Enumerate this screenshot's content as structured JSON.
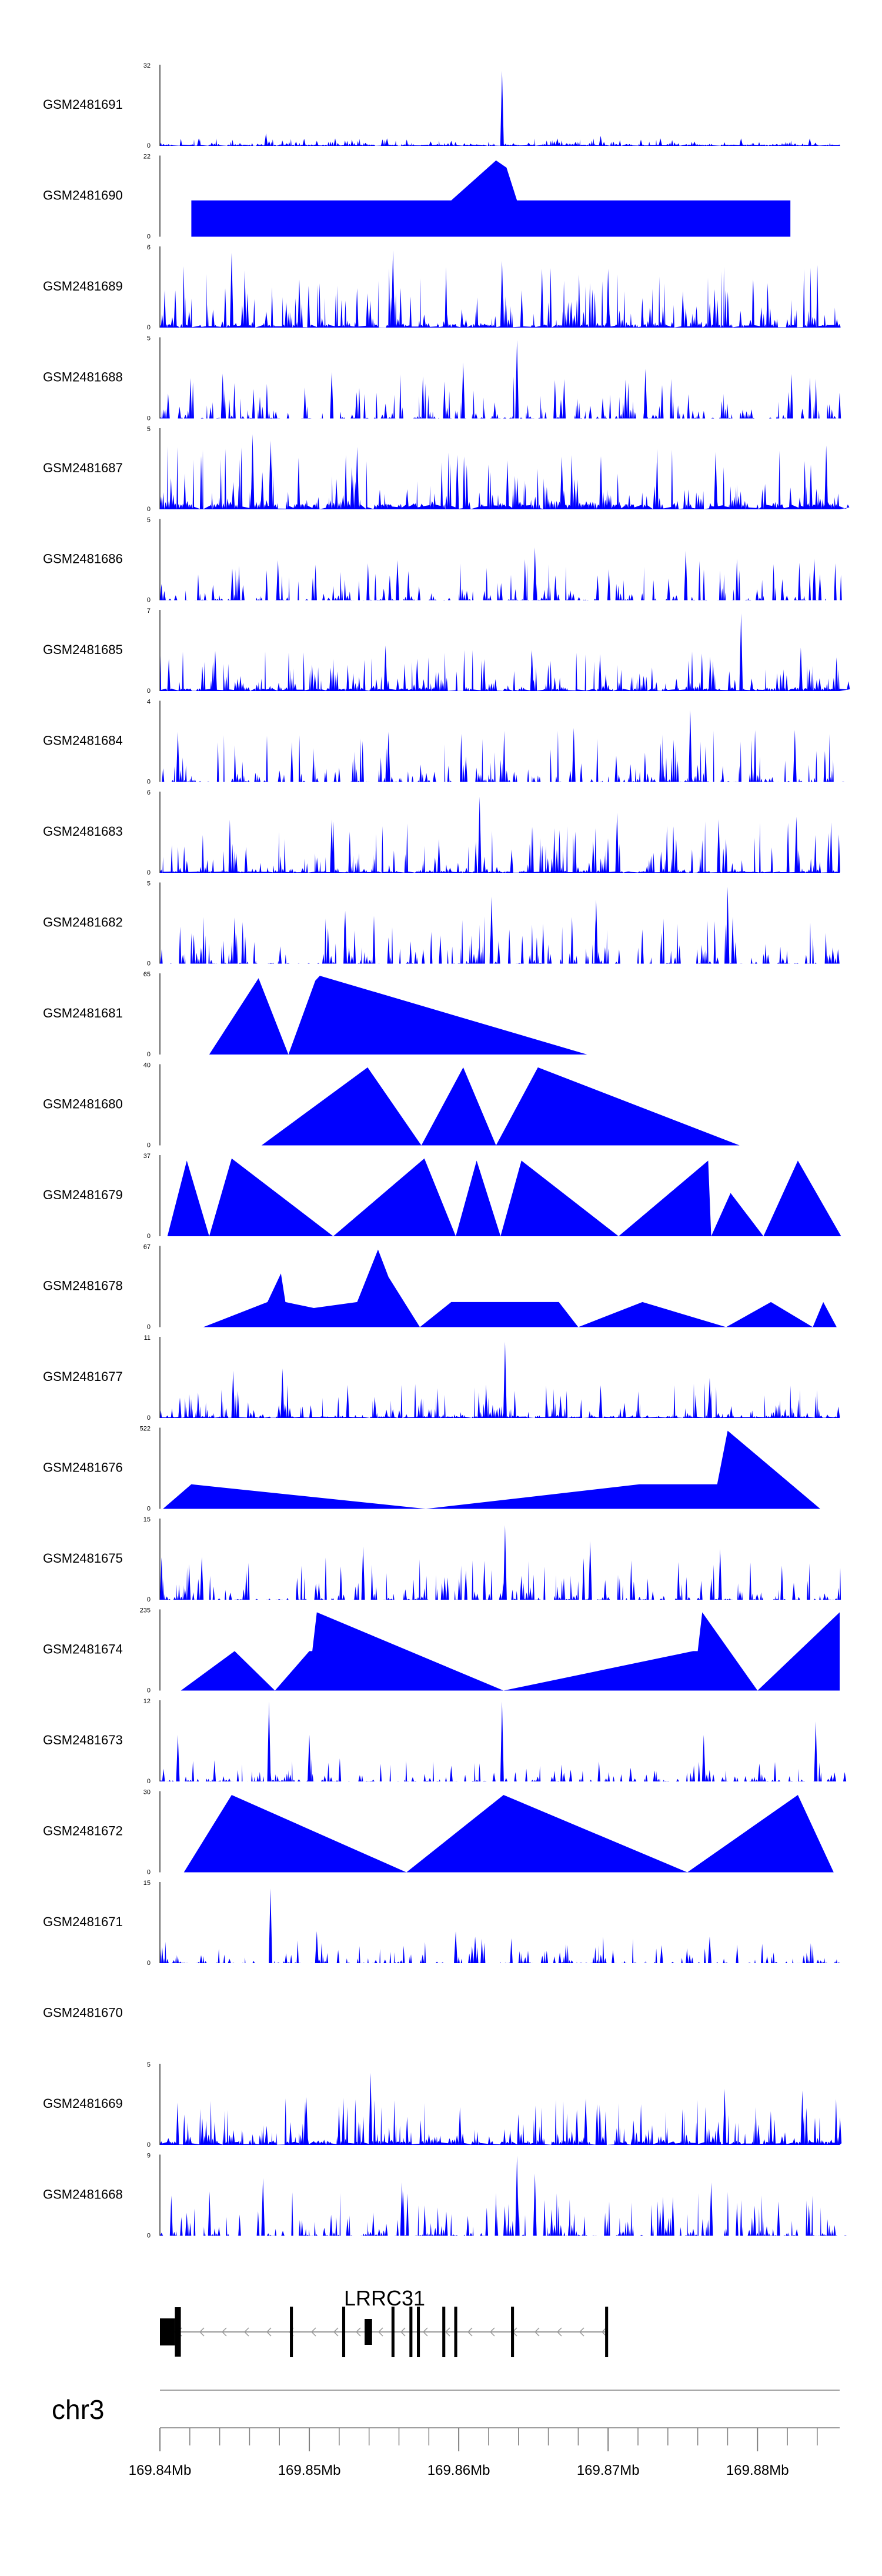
{
  "chart_data": {
    "type": "area",
    "title": "",
    "track_color": "#0000FF",
    "gene_color": "#000000",
    "axis_color": "#808080",
    "x_range_mb": [
      169.84,
      169.8855
    ],
    "tracks": [
      {
        "label": "GSM2481691",
        "ymax": "32",
        "ymin": "0",
        "ymax_value": 32,
        "peaks": [
          [
            169.8426,
            3
          ],
          [
            169.8471,
            5
          ],
          [
            169.8505,
            2
          ],
          [
            169.8552,
            3
          ],
          [
            169.8595,
            2
          ],
          [
            169.8629,
            30
          ],
          [
            169.8666,
            3
          ],
          [
            169.8695,
            4
          ],
          [
            169.8735,
            3
          ],
          [
            169.8789,
            3
          ],
          [
            169.8835,
            3
          ]
        ],
        "baseline": [
          0.4,
          3
        ]
      },
      {
        "label": "GSM2481690",
        "ymax": "22",
        "ymin": "0",
        "ymax_value": 22,
        "peaks": [
          [
            169.8421,
            10
          ],
          [
            169.8444,
            10
          ],
          [
            169.8474,
            10
          ],
          [
            169.8504,
            10
          ],
          [
            169.8517,
            10
          ],
          [
            169.8546,
            10
          ],
          [
            169.8558,
            10
          ],
          [
            169.8582,
            10
          ],
          [
            169.8595,
            10
          ],
          [
            169.8625,
            21
          ],
          [
            169.8632,
            19
          ],
          [
            169.8639,
            10
          ],
          [
            169.8662,
            10
          ],
          [
            169.8682,
            10
          ],
          [
            169.8713,
            10
          ],
          [
            169.8775,
            10
          ],
          [
            169.8807,
            10
          ],
          [
            169.8822,
            10
          ]
        ],
        "baseline": [
          0,
          0
        ]
      },
      {
        "label": "GSM2481689",
        "ymax": "6",
        "ymin": "0",
        "ymax_value": 6,
        "peaks": [
          [
            169.8448,
            5.6
          ],
          [
            169.8556,
            5.8
          ],
          [
            169.8629,
            5
          ],
          [
            169.87,
            4.4
          ]
        ],
        "baseline": [
          0.2,
          4.8
        ]
      },
      {
        "label": "GSM2481688",
        "ymax": "5",
        "ymin": "0",
        "ymax_value": 5,
        "peaks": [
          [
            169.8442,
            2.8
          ],
          [
            169.8515,
            2.9
          ],
          [
            169.8603,
            3.5
          ],
          [
            169.8639,
            4.9
          ],
          [
            169.8725,
            3.1
          ]
        ],
        "baseline": [
          0,
          2.8
        ]
      },
      {
        "label": "GSM2481687",
        "ymax": "5",
        "ymin": "0",
        "ymax_value": 5,
        "peaks": [
          [
            169.8462,
            4.7
          ],
          [
            169.8474,
            4.3
          ],
          [
            169.8532,
            3.9
          ],
          [
            169.8599,
            3.4
          ],
          [
            169.8669,
            3.3
          ],
          [
            169.8772,
            3.6
          ],
          [
            169.8846,
            4
          ]
        ],
        "baseline": [
          0.3,
          4
        ]
      },
      {
        "label": "GSM2481686",
        "ymax": "5",
        "ymin": "0",
        "ymax_value": 5,
        "peaks": [
          [
            169.8479,
            2.5
          ],
          [
            169.8559,
            2.5
          ],
          [
            169.8651,
            3.3
          ],
          [
            169.8752,
            3.1
          ],
          [
            169.8838,
            2.6
          ]
        ],
        "baseline": [
          0,
          2.6
        ]
      },
      {
        "label": "GSM2481685",
        "ymax": "7",
        "ymin": "0",
        "ymax_value": 7,
        "peaks": [
          [
            169.8437,
            3.5
          ],
          [
            169.8551,
            4
          ],
          [
            169.8649,
            3.6
          ],
          [
            169.8789,
            6.8
          ],
          [
            169.8829,
            3.8
          ]
        ],
        "baseline": [
          0.2,
          3.6
        ]
      },
      {
        "label": "GSM2481684",
        "ymax": "4",
        "ymin": "0",
        "ymax_value": 4,
        "peaks": [
          [
            169.8412,
            2.5
          ],
          [
            169.8553,
            2.5
          ],
          [
            169.8677,
            2.7
          ],
          [
            169.8755,
            3.6
          ],
          [
            169.8825,
            2.6
          ]
        ],
        "baseline": [
          0,
          2.6
        ]
      },
      {
        "label": "GSM2481683",
        "ymax": "6",
        "ymin": "0",
        "ymax_value": 6,
        "peaks": [
          [
            169.8515,
            4
          ],
          [
            169.8614,
            5.7
          ],
          [
            169.8706,
            4.5
          ],
          [
            169.8774,
            4
          ],
          [
            169.8826,
            4.2
          ]
        ],
        "baseline": [
          0.1,
          4
        ]
      },
      {
        "label": "GSM2481682",
        "ymax": "5",
        "ymin": "0",
        "ymax_value": 5,
        "peaks": [
          [
            169.845,
            2.9
          ],
          [
            169.8524,
            3.3
          ],
          [
            169.8622,
            4.2
          ],
          [
            169.8692,
            4
          ],
          [
            169.878,
            4.8
          ]
        ],
        "baseline": [
          0,
          3
        ]
      },
      {
        "label": "GSM2481681",
        "ymax": "65",
        "ymin": "0",
        "ymax_value": 65,
        "peaks": [
          [
            169.8433,
            0
          ],
          [
            169.8466,
            62
          ],
          [
            169.8486,
            0
          ],
          [
            169.8504,
            60
          ],
          [
            169.8507,
            64
          ],
          [
            169.8686,
            0
          ]
        ],
        "baseline": [
          0,
          0
        ]
      },
      {
        "label": "GSM2481680",
        "ymax": "40",
        "ymin": "0",
        "ymax_value": 40,
        "peaks": [
          [
            169.8468,
            0
          ],
          [
            169.8539,
            39
          ],
          [
            169.8575,
            0
          ],
          [
            169.8603,
            39
          ],
          [
            169.8625,
            0
          ],
          [
            169.8653,
            39
          ],
          [
            169.8788,
            0
          ]
        ],
        "baseline": [
          0,
          0
        ]
      },
      {
        "label": "GSM2481679",
        "ymax": "37",
        "ymin": "0",
        "ymax_value": 37,
        "peaks": [
          [
            169.8405,
            0
          ],
          [
            169.8418,
            35
          ],
          [
            169.8433,
            0
          ],
          [
            169.8448,
            36
          ],
          [
            169.8516,
            0
          ],
          [
            169.8577,
            36
          ],
          [
            169.8598,
            0
          ],
          [
            169.8612,
            35
          ],
          [
            169.8628,
            0
          ],
          [
            169.8642,
            35
          ],
          [
            169.8707,
            0
          ],
          [
            169.8767,
            35
          ],
          [
            169.8769,
            0
          ],
          [
            169.8782,
            20
          ],
          [
            169.8804,
            0
          ],
          [
            169.8827,
            35
          ],
          [
            169.8856,
            0
          ]
        ],
        "baseline": [
          0,
          0
        ]
      },
      {
        "label": "GSM2481678",
        "ymax": "67",
        "ymin": "0",
        "ymax_value": 67,
        "peaks": [
          [
            169.8429,
            0
          ],
          [
            169.8472,
            21
          ],
          [
            169.8481,
            45
          ],
          [
            169.8484,
            21
          ],
          [
            169.8503,
            16
          ],
          [
            169.8532,
            21
          ],
          [
            169.8546,
            65
          ],
          [
            169.8553,
            42
          ],
          [
            169.8574,
            0
          ],
          [
            169.8595,
            21
          ],
          [
            169.8667,
            21
          ],
          [
            169.868,
            0
          ],
          [
            169.8723,
            21
          ],
          [
            169.8779,
            0
          ],
          [
            169.8809,
            21
          ],
          [
            169.8837,
            0
          ],
          [
            169.8844,
            21
          ],
          [
            169.8853,
            0
          ]
        ],
        "baseline": [
          0,
          0
        ]
      },
      {
        "label": "GSM2481677",
        "ymax": "11",
        "ymin": "0",
        "ymax_value": 11,
        "peaks": [
          [
            169.8449,
            6.5
          ],
          [
            169.8482,
            6.8
          ],
          [
            169.8631,
            10.5
          ],
          [
            169.8695,
            4.5
          ],
          [
            169.8768,
            5.5
          ]
        ],
        "baseline": [
          0.2,
          4.8
        ]
      },
      {
        "label": "GSM2481676",
        "ymax": "522",
        "ymin": "0",
        "ymax_value": 522,
        "peaks": [
          [
            169.8402,
            0
          ],
          [
            169.8421,
            160
          ],
          [
            169.8578,
            0
          ],
          [
            169.8721,
            160
          ],
          [
            169.8773,
            160
          ],
          [
            169.878,
            510
          ],
          [
            169.8842,
            0
          ]
        ],
        "baseline": [
          0,
          0
        ]
      },
      {
        "label": "GSM2481675",
        "ymax": "15",
        "ymin": "0",
        "ymax_value": 15,
        "peaks": [
          [
            169.8428,
            8
          ],
          [
            169.8536,
            10
          ],
          [
            169.8631,
            14
          ],
          [
            169.8688,
            11
          ],
          [
            169.8775,
            9.5
          ]
        ],
        "baseline": [
          0,
          8
        ]
      },
      {
        "label": "GSM2481674",
        "ymax": "235",
        "ymin": "0",
        "ymax_value": 235,
        "peaks": [
          [
            169.8414,
            0
          ],
          [
            169.845,
            116
          ],
          [
            169.8477,
            0
          ],
          [
            169.85,
            116
          ],
          [
            169.8502,
            116
          ],
          [
            169.8505,
            230
          ],
          [
            169.863,
            0
          ],
          [
            169.8757,
            116
          ],
          [
            169.876,
            116
          ],
          [
            169.8763,
            230
          ],
          [
            169.88,
            0
          ],
          [
            169.8855,
            230
          ]
        ],
        "baseline": [
          0,
          0
        ]
      },
      {
        "label": "GSM2481673",
        "ymax": "12",
        "ymin": "0",
        "ymax_value": 12,
        "peaks": [
          [
            169.8412,
            7
          ],
          [
            169.8473,
            12
          ],
          [
            169.85,
            7
          ],
          [
            169.8629,
            12
          ],
          [
            169.8764,
            7
          ],
          [
            169.8839,
            9
          ]
        ],
        "baseline": [
          0,
          3.5
        ]
      },
      {
        "label": "GSM2481672",
        "ymax": "30",
        "ymin": "0",
        "ymax_value": 30,
        "peaks": [
          [
            169.8416,
            0
          ],
          [
            169.8448,
            29
          ],
          [
            169.8565,
            0
          ],
          [
            169.863,
            29
          ],
          [
            169.8753,
            0
          ],
          [
            169.8827,
            29
          ],
          [
            169.8851,
            0
          ]
        ],
        "baseline": [
          0,
          0
        ]
      },
      {
        "label": "GSM2481671",
        "ymax": "15",
        "ymin": "0",
        "ymax_value": 15,
        "peaks": [
          [
            169.8474,
            14
          ],
          [
            169.8505,
            6
          ],
          [
            169.8598,
            6
          ],
          [
            169.8611,
            5
          ],
          [
            169.8768,
            5
          ]
        ],
        "baseline": [
          0,
          5
        ]
      },
      {
        "label": "GSM2481670",
        "ymax": "",
        "ymin": "",
        "ymax_value": 0,
        "peaks": [],
        "baseline": [
          0,
          0
        ]
      },
      {
        "label": "GSM2481669",
        "ymax": "5",
        "ymin": "0",
        "ymax_value": 5,
        "peaks": [
          [
            169.8498,
            3
          ],
          [
            169.8541,
            4.5
          ],
          [
            169.8685,
            2.9
          ],
          [
            169.8778,
            3.5
          ],
          [
            169.883,
            3.4
          ]
        ],
        "baseline": [
          0.2,
          3
        ]
      },
      {
        "label": "GSM2481668",
        "ymax": "9",
        "ymin": "0",
        "ymax_value": 9,
        "peaks": [
          [
            169.8469,
            6.5
          ],
          [
            169.8562,
            6
          ],
          [
            169.8639,
            9
          ],
          [
            169.8651,
            7
          ],
          [
            169.8769,
            6
          ]
        ],
        "baseline": [
          0,
          5
        ]
      }
    ],
    "gene": {
      "name": "LRRC31",
      "strand": "-",
      "start": 169.84,
      "end": 169.87,
      "exons": [
        [
          169.84,
          169.841
        ],
        [
          169.841,
          169.8414
        ],
        [
          169.8487,
          169.8489
        ],
        [
          169.8522,
          169.8524
        ],
        [
          169.8537,
          169.8542
        ],
        [
          169.8555,
          169.8557
        ],
        [
          169.8567,
          169.8569
        ],
        [
          169.8572,
          169.8574
        ],
        [
          169.8589,
          169.8591
        ],
        [
          169.8597,
          169.8599
        ],
        [
          169.8635,
          169.8637
        ],
        [
          169.8698,
          169.87
        ]
      ]
    },
    "chromosome": "chr3",
    "axis": {
      "major_ticks": [
        169.84,
        169.85,
        169.86,
        169.87,
        169.88
      ],
      "tick_labels": [
        "169.84Mb",
        "169.85Mb",
        "169.86Mb",
        "169.87Mb",
        "169.88Mb"
      ],
      "minor_step": 0.002
    }
  }
}
